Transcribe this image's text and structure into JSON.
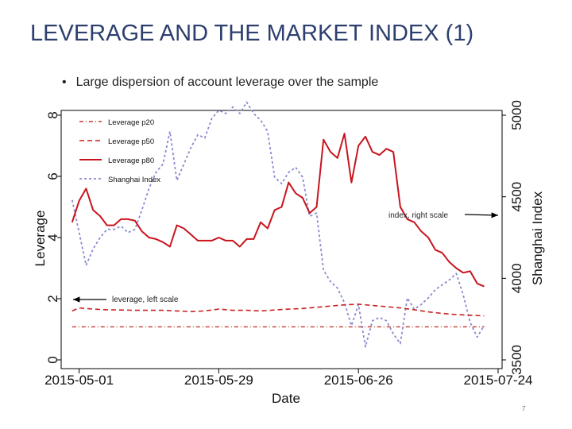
{
  "slide": {
    "title": "LEVERAGE AND THE MARKET INDEX (1)",
    "bullet": "Large dispersion of account leverage over the sample",
    "page_number": "7"
  },
  "colors": {
    "title": "#2d3f6e",
    "p20": "#c0392b",
    "p50": "#cc1f1f",
    "p80": "#c8141e",
    "index": "#8a8ad0"
  },
  "chart_data": {
    "type": "line",
    "xlabel": "Date",
    "ylabel": "Leverage",
    "y2label": "Shanghai Index",
    "x_ticks": [
      "2015-05-01",
      "2015-05-29",
      "2015-06-26",
      "2015-07-24"
    ],
    "x_range": [
      0,
      58
    ],
    "x_tick_positions": [
      0,
      20,
      40,
      60
    ],
    "ylim": [
      0,
      8
    ],
    "y_ticks": [
      0,
      2,
      4,
      6,
      8
    ],
    "y2lim": [
      3500,
      5000
    ],
    "y2_ticks": [
      3500,
      4000,
      4500,
      5000
    ],
    "legend": [
      "Leverage p20",
      "Leverage p50",
      "Leverage p80",
      "Shanghai Index"
    ],
    "legend_position": "top-left",
    "annotations": [
      {
        "text": "index, right scale",
        "series": "Shanghai Index"
      },
      {
        "text": "leverage, left scale",
        "series": "Leverage p50"
      }
    ],
    "series": [
      {
        "name": "Leverage p20",
        "axis": "left",
        "style": "dashdot",
        "x": [
          -1,
          58
        ],
        "values": [
          1.08,
          1.08
        ]
      },
      {
        "name": "Leverage p50",
        "axis": "left",
        "style": "dashed",
        "x": [
          -1,
          0,
          2,
          4,
          6,
          8,
          10,
          12,
          14,
          16,
          18,
          20,
          22,
          24,
          26,
          28,
          30,
          32,
          34,
          36,
          38,
          40,
          42,
          44,
          46,
          48,
          50,
          52,
          54,
          56,
          58
        ],
        "values": [
          1.6,
          1.7,
          1.66,
          1.64,
          1.63,
          1.62,
          1.62,
          1.62,
          1.6,
          1.58,
          1.6,
          1.66,
          1.62,
          1.62,
          1.6,
          1.63,
          1.66,
          1.68,
          1.72,
          1.76,
          1.8,
          1.82,
          1.78,
          1.74,
          1.7,
          1.64,
          1.57,
          1.52,
          1.48,
          1.46,
          1.44
        ]
      },
      {
        "name": "Leverage p80",
        "axis": "left",
        "style": "solid",
        "x": [
          -1,
          0,
          1,
          2,
          3,
          4,
          5,
          6,
          7,
          8,
          9,
          10,
          11,
          12,
          13,
          14,
          15,
          16,
          17,
          18,
          19,
          20,
          21,
          22,
          23,
          24,
          25,
          26,
          27,
          28,
          29,
          30,
          31,
          32,
          33,
          34,
          35,
          36,
          37,
          38,
          39,
          40,
          41,
          42,
          43,
          44,
          45,
          46,
          47,
          48,
          49,
          50,
          51,
          52,
          53,
          54,
          55,
          56,
          57,
          58
        ],
        "values": [
          4.5,
          5.2,
          5.6,
          4.9,
          4.7,
          4.4,
          4.4,
          4.6,
          4.6,
          4.55,
          4.2,
          4.0,
          3.95,
          3.85,
          3.7,
          4.4,
          4.3,
          4.1,
          3.9,
          3.9,
          3.9,
          4.0,
          3.9,
          3.9,
          3.7,
          3.95,
          3.95,
          4.5,
          4.3,
          4.9,
          5.0,
          5.8,
          5.45,
          5.3,
          4.8,
          5.0,
          7.2,
          6.8,
          6.6,
          7.4,
          5.8,
          7.0,
          7.3,
          6.8,
          6.7,
          6.9,
          6.8,
          5.0,
          4.6,
          4.5,
          4.2,
          4.0,
          3.6,
          3.5,
          3.2,
          3.0,
          2.85,
          2.9,
          2.5,
          2.4
        ]
      },
      {
        "name": "Shanghai Index",
        "axis": "right",
        "style": "dotted",
        "x": [
          -1,
          0,
          1,
          2,
          3,
          4,
          5,
          6,
          7,
          8,
          9,
          10,
          11,
          12,
          13,
          14,
          15,
          16,
          17,
          18,
          19,
          20,
          21,
          22,
          23,
          24,
          25,
          26,
          27,
          28,
          29,
          30,
          31,
          32,
          33,
          34,
          35,
          36,
          37,
          38,
          39,
          40,
          41,
          42,
          43,
          44,
          45,
          46,
          47,
          48,
          49,
          50,
          51,
          52,
          53,
          54,
          55,
          56,
          57,
          58
        ],
        "values": [
          4480,
          4280,
          4080,
          4180,
          4250,
          4300,
          4300,
          4320,
          4280,
          4300,
          4420,
          4550,
          4650,
          4700,
          4900,
          4600,
          4700,
          4800,
          4880,
          4860,
          4980,
          5030,
          5010,
          5050,
          5010,
          5080,
          5010,
          4970,
          4900,
          4620,
          4580,
          4650,
          4680,
          4620,
          4380,
          4400,
          4050,
          3980,
          3940,
          3850,
          3710,
          3840,
          3580,
          3740,
          3760,
          3740,
          3660,
          3600,
          3880,
          3810,
          3840,
          3880,
          3930,
          3960,
          3990,
          4030,
          3900,
          3730,
          3640,
          3710
        ]
      }
    ]
  }
}
